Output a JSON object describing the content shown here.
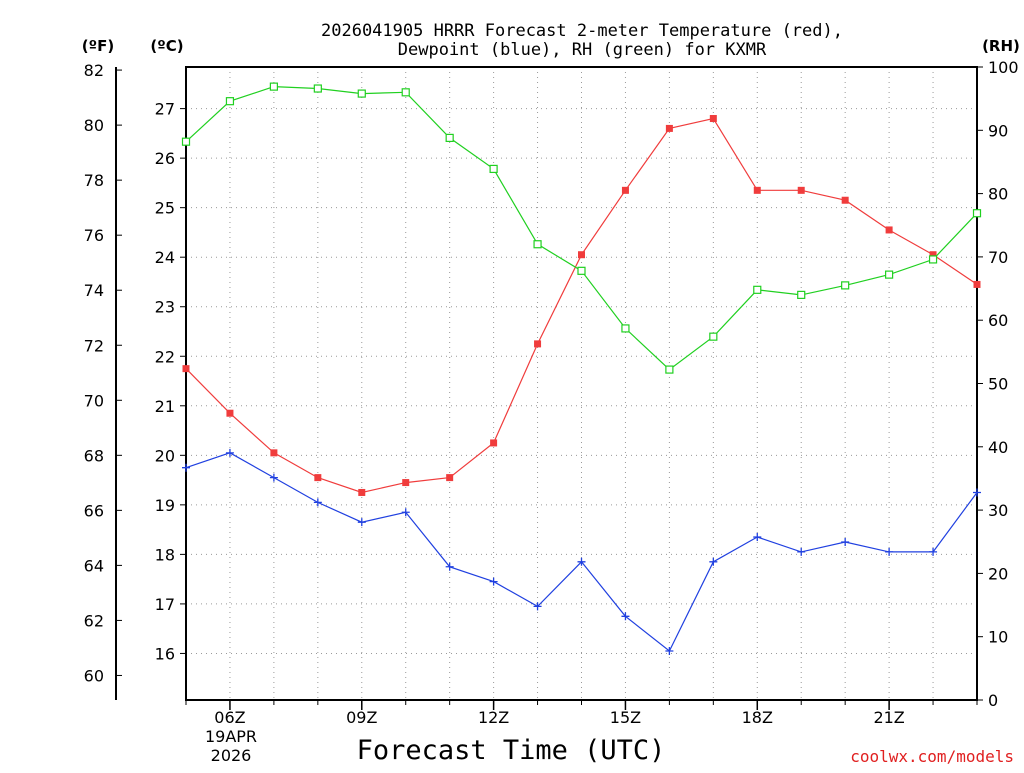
{
  "chart_data": {
    "type": "line",
    "title_line1": "2026041905 HRRR Forecast 2-meter Temperature (red),",
    "title_line2": "Dewpoint (blue), RH (green) for KXMR",
    "xlabel": "Forecast Time (UTC)",
    "watermark": "coolwx.com/models",
    "date_label_line1": "19APR",
    "date_label_line2": "2026",
    "axis_unit_labels": {
      "fahrenheit": "(ºF)",
      "celsius": "(ºC)",
      "rh": "(RH)"
    },
    "x_hours": [
      5,
      6,
      7,
      8,
      9,
      10,
      11,
      12,
      13,
      14,
      15,
      16,
      17,
      18,
      19,
      20,
      21,
      22,
      23
    ],
    "x_range": [
      5,
      23
    ],
    "x_ticks": [
      {
        "hour": 6,
        "label": "06Z"
      },
      {
        "hour": 9,
        "label": "09Z"
      },
      {
        "hour": 12,
        "label": "12Z"
      },
      {
        "hour": 15,
        "label": "15Z"
      },
      {
        "hour": 18,
        "label": "18Z"
      },
      {
        "hour": 21,
        "label": "21Z"
      }
    ],
    "celsius_range": [
      15.06,
      27.84
    ],
    "celsius_ticks": [
      16,
      17,
      18,
      19,
      20,
      21,
      22,
      23,
      24,
      25,
      26,
      27
    ],
    "fahrenheit_ticks": [
      60,
      62,
      64,
      66,
      68,
      70,
      72,
      74,
      76,
      78,
      80,
      82
    ],
    "rh_range": [
      0,
      100
    ],
    "rh_ticks": [
      0,
      10,
      20,
      30,
      40,
      50,
      60,
      70,
      80,
      90,
      100
    ],
    "series": [
      {
        "name": "Temperature",
        "unit": "C",
        "color": "#f03c3c",
        "marker": "filled-square",
        "values": [
          21.75,
          20.85,
          20.05,
          19.55,
          19.25,
          19.45,
          19.55,
          20.25,
          22.25,
          24.05,
          25.35,
          26.6,
          26.8,
          25.35,
          25.35,
          25.15,
          24.55,
          24.05,
          23.45
        ]
      },
      {
        "name": "Dewpoint",
        "unit": "C",
        "color": "#2040e0",
        "marker": "plus",
        "values": [
          19.75,
          20.05,
          19.55,
          19.05,
          18.65,
          18.85,
          17.75,
          17.45,
          16.95,
          17.85,
          16.75,
          16.05,
          17.85,
          18.35,
          18.05,
          18.25,
          18.05,
          18.05,
          19.25
        ]
      },
      {
        "name": "RH",
        "unit": "%",
        "color": "#20d020",
        "marker": "open-square",
        "values": [
          88.2,
          94.6,
          96.9,
          96.6,
          95.8,
          96.0,
          88.8,
          83.9,
          72.0,
          67.8,
          58.7,
          52.2,
          57.4,
          64.8,
          64.0,
          65.5,
          67.2,
          69.6,
          76.9
        ]
      }
    ]
  }
}
